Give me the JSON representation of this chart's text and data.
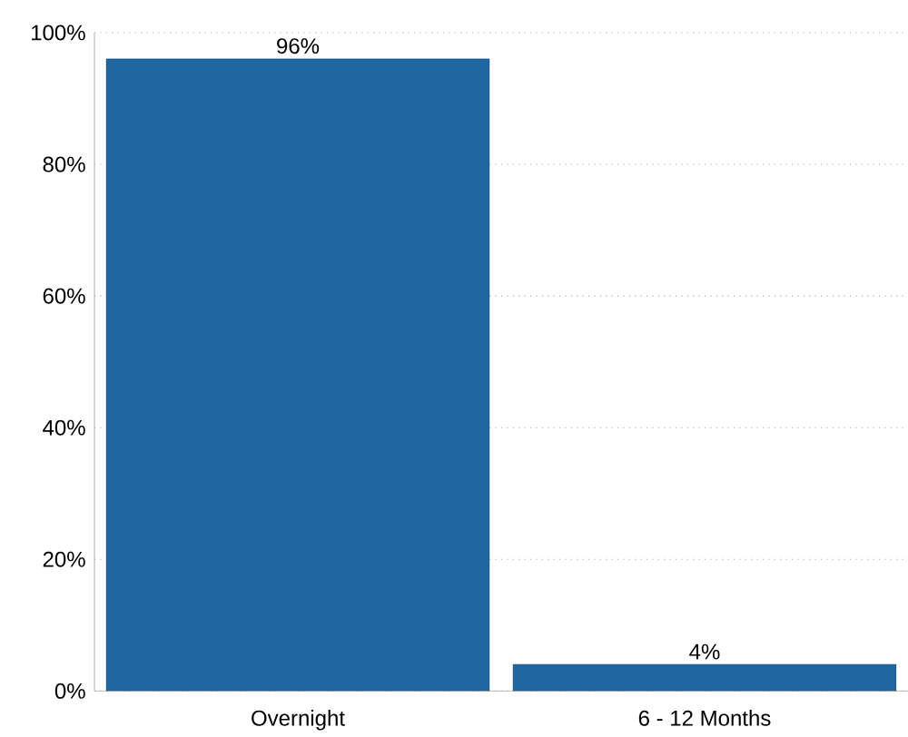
{
  "chart_data": {
    "type": "bar",
    "categories": [
      "Overnight",
      "6 - 12 Months"
    ],
    "values": [
      96,
      4
    ],
    "value_labels": [
      "96%",
      "4%"
    ],
    "color": "#1f67a0",
    "ylim": [
      0,
      100
    ],
    "yticks": [
      {
        "value": 0,
        "label": "0%"
      },
      {
        "value": 20,
        "label": "20%"
      },
      {
        "value": 40,
        "label": "40%"
      },
      {
        "value": 60,
        "label": "60%"
      },
      {
        "value": 80,
        "label": "80%"
      },
      {
        "value": 100,
        "label": "100%"
      }
    ],
    "grid": "y"
  }
}
